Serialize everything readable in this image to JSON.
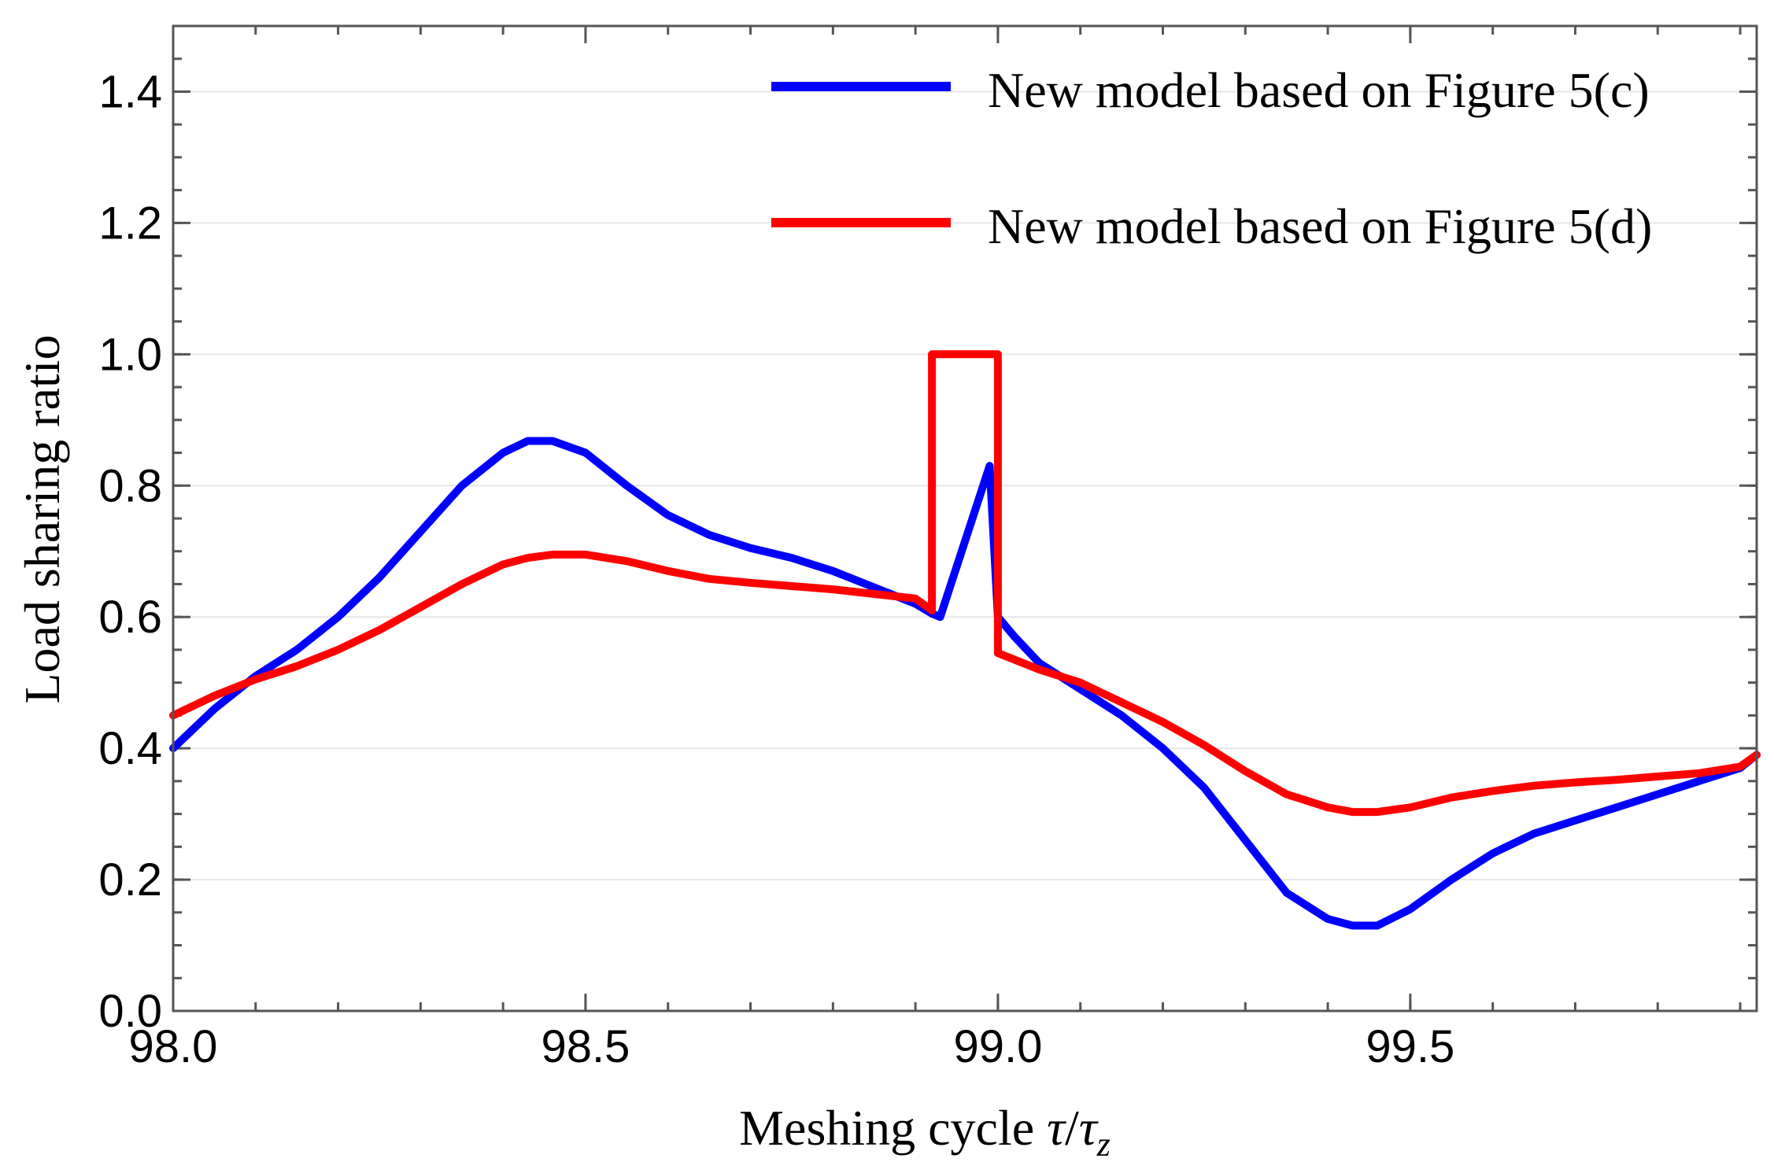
{
  "chart_data": {
    "type": "line",
    "title": "",
    "xlabel_text": "Meshing cycle ",
    "xlabel_tau": "τ",
    "xlabel_slash": "/",
    "xlabel_tau2": "τ",
    "xlabel_sub": "z",
    "ylabel": "Load sharing ratio",
    "xlim": [
      98.0,
      99.92
    ],
    "ylim": [
      0.0,
      1.5
    ],
    "x_ticks": [
      98.0,
      98.5,
      99.0,
      99.5
    ],
    "x_tick_labels": [
      "98.0",
      "98.5",
      "99.0",
      "99.5"
    ],
    "y_ticks": [
      0.0,
      0.2,
      0.4,
      0.6,
      0.8,
      1.0,
      1.2,
      1.4
    ],
    "y_tick_labels": [
      "0.0",
      "0.2",
      "0.4",
      "0.6",
      "0.8",
      "1.0",
      "1.2",
      "1.4"
    ],
    "grid": true,
    "legend_position": "top-right",
    "series": [
      {
        "name": "New model based on Figure 5(c)",
        "color": "#0000ff",
        "x": [
          98.0,
          98.05,
          98.1,
          98.15,
          98.2,
          98.25,
          98.3,
          98.35,
          98.4,
          98.43,
          98.46,
          98.5,
          98.55,
          98.6,
          98.65,
          98.7,
          98.75,
          98.8,
          98.85,
          98.9,
          98.92,
          98.93,
          98.99,
          99.0,
          99.02,
          99.05,
          99.1,
          99.15,
          99.2,
          99.25,
          99.3,
          99.35,
          99.4,
          99.43,
          99.46,
          99.5,
          99.55,
          99.6,
          99.65,
          99.7,
          99.75,
          99.8,
          99.85,
          99.9,
          99.92
        ],
        "y": [
          0.4,
          0.46,
          0.51,
          0.55,
          0.6,
          0.66,
          0.73,
          0.8,
          0.85,
          0.868,
          0.868,
          0.85,
          0.8,
          0.755,
          0.725,
          0.705,
          0.69,
          0.67,
          0.645,
          0.62,
          0.605,
          0.6,
          0.83,
          0.6,
          0.57,
          0.53,
          0.49,
          0.45,
          0.4,
          0.34,
          0.26,
          0.18,
          0.14,
          0.13,
          0.13,
          0.155,
          0.2,
          0.24,
          0.27,
          0.29,
          0.31,
          0.33,
          0.35,
          0.37,
          0.39
        ]
      },
      {
        "name": "New model based on Figure 5(d)",
        "color": "#ff0000",
        "x": [
          98.0,
          98.05,
          98.1,
          98.15,
          98.2,
          98.25,
          98.3,
          98.35,
          98.4,
          98.43,
          98.46,
          98.5,
          98.55,
          98.6,
          98.65,
          98.7,
          98.75,
          98.8,
          98.85,
          98.9,
          98.92,
          98.92,
          99.0,
          99.0,
          99.05,
          99.1,
          99.15,
          99.2,
          99.25,
          99.3,
          99.35,
          99.4,
          99.43,
          99.46,
          99.5,
          99.55,
          99.6,
          99.65,
          99.7,
          99.75,
          99.8,
          99.85,
          99.9,
          99.92
        ],
        "y": [
          0.45,
          0.48,
          0.505,
          0.525,
          0.55,
          0.58,
          0.615,
          0.65,
          0.68,
          0.69,
          0.695,
          0.695,
          0.685,
          0.67,
          0.658,
          0.652,
          0.647,
          0.642,
          0.635,
          0.628,
          0.61,
          1.0,
          1.0,
          0.545,
          0.52,
          0.5,
          0.47,
          0.44,
          0.405,
          0.365,
          0.33,
          0.31,
          0.303,
          0.303,
          0.31,
          0.325,
          0.335,
          0.343,
          0.348,
          0.352,
          0.357,
          0.362,
          0.372,
          0.39
        ]
      }
    ]
  }
}
